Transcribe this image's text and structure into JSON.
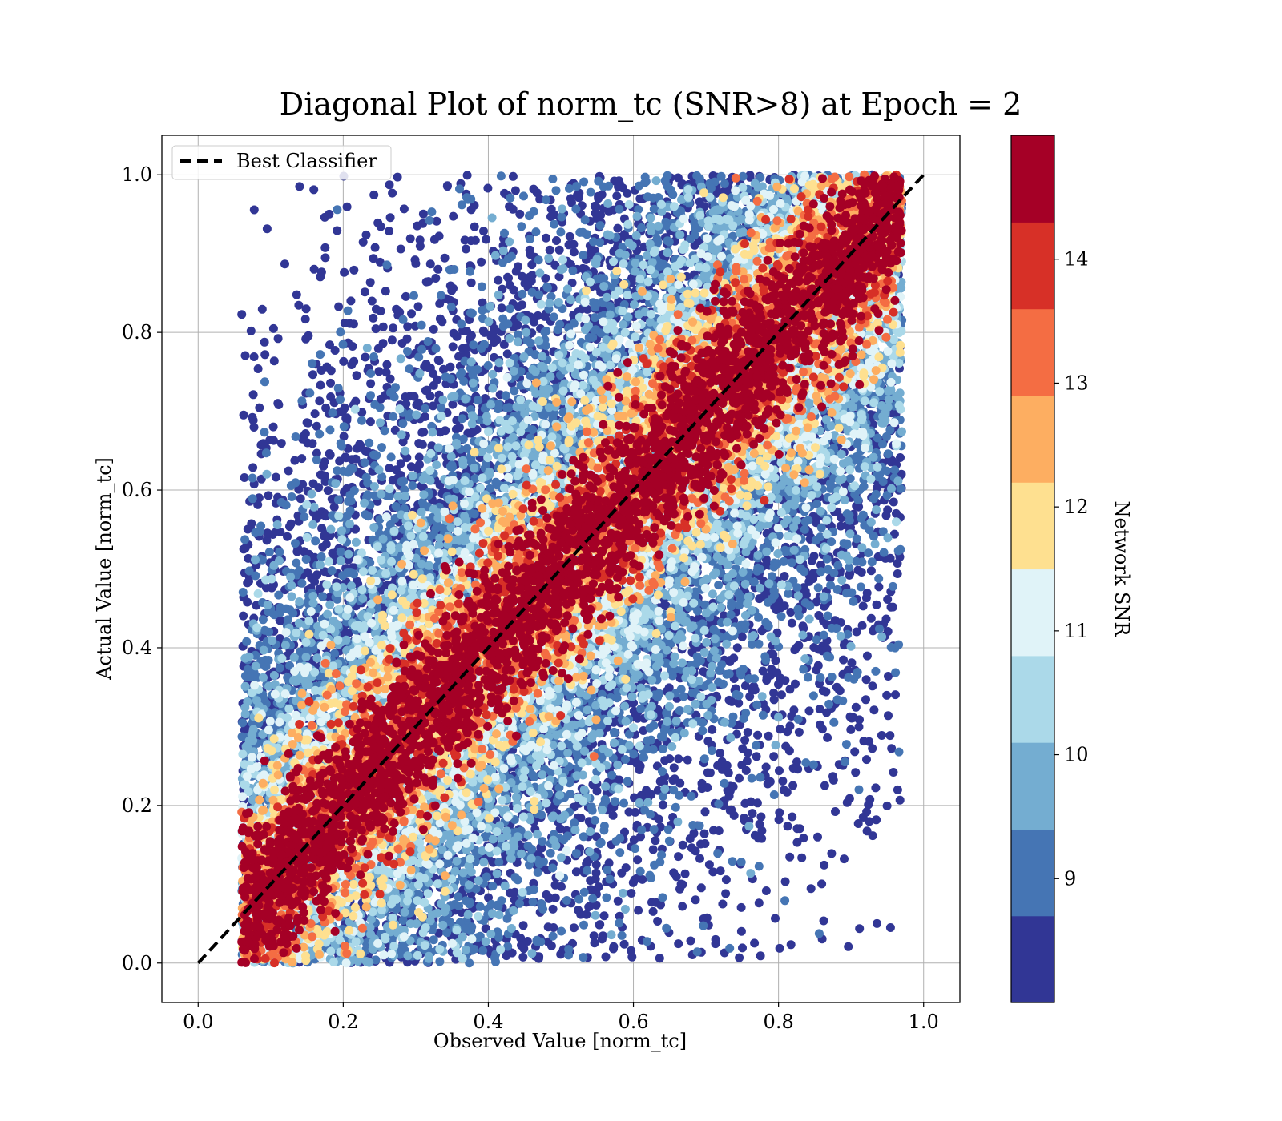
{
  "chart_data": {
    "type": "scatter",
    "title": "Diagonal Plot of norm_tc (SNR>8) at Epoch = 2",
    "xlabel": "Observed Value [norm_tc]",
    "ylabel": "Actual Value [norm_tc]",
    "xlim": [
      -0.05,
      1.05
    ],
    "ylim": [
      -0.05,
      1.05
    ],
    "xticks": [
      "0.0",
      "0.2",
      "0.4",
      "0.6",
      "0.8",
      "1.0"
    ],
    "yticks": [
      "0.0",
      "0.2",
      "0.4",
      "0.6",
      "0.8",
      "1.0"
    ],
    "grid": true,
    "legend": {
      "placement": "top-left",
      "entries": [
        {
          "label": "Best Classifier",
          "style": "dashed",
          "color": "#000000"
        }
      ]
    },
    "reference_line": {
      "label": "Best Classifier",
      "x": [
        0.0,
        1.0
      ],
      "y": [
        0.0,
        1.0
      ]
    },
    "colorbar": {
      "label": "Network SNR",
      "range": [
        8,
        15
      ],
      "ticks": [
        "9",
        "10",
        "11",
        "12",
        "13",
        "14"
      ],
      "colors": [
        "#313695",
        "#4575b4",
        "#74add1",
        "#abd9e9",
        "#e0f3f8",
        "#fee090",
        "#fdae61",
        "#f46d43",
        "#d73027",
        "#a50026"
      ]
    },
    "scatter_summary": {
      "points": 30000,
      "x_range": [
        0.06,
        0.97
      ],
      "y_range": [
        0.0,
        1.0
      ],
      "note": "Points lie in a band about the line y = x; SNR > 14 (dark red) points sit close to the diagonal and lower-SNR (blue) points spread farther from it."
    }
  }
}
